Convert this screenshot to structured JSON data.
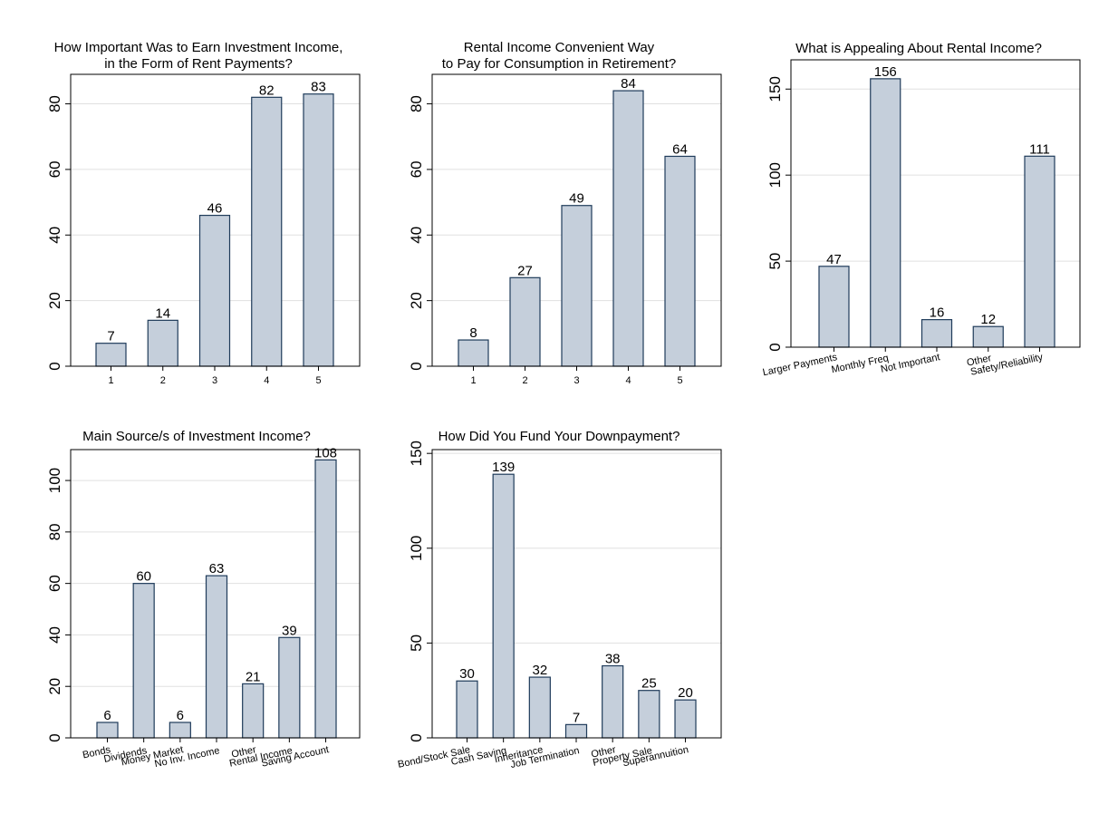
{
  "figure": {
    "background": "#ffffff"
  },
  "style": {
    "bar_fill": "#c5cfdb",
    "bar_stroke": "#1f3b5a",
    "grid_color": "#e0e0e0",
    "axis_color": "#000000"
  },
  "chart_data": [
    {
      "type": "bar",
      "title_lines": [
        "How Important Was to Earn Investment Income,",
        "in the Form of Rent Payments?"
      ],
      "categories": [
        "1",
        "2",
        "3",
        "4",
        "5"
      ],
      "values": [
        7,
        14,
        46,
        82,
        83
      ],
      "value_labels": [
        "7",
        "14",
        "46",
        "82",
        "83"
      ],
      "yticks": [
        0,
        20,
        40,
        60,
        80
      ],
      "ytick_labels": [
        "0",
        "20",
        "40",
        "60",
        "80"
      ],
      "ylim": [
        0,
        89
      ],
      "grid": true,
      "category_label_style": "horizontal"
    },
    {
      "type": "bar",
      "title_lines": [
        "Rental Income Convenient Way",
        "to Pay for Consumption in Retirement?"
      ],
      "categories": [
        "1",
        "2",
        "3",
        "4",
        "5"
      ],
      "values": [
        8,
        27,
        49,
        84,
        64
      ],
      "value_labels": [
        "8",
        "27",
        "49",
        "84",
        "64"
      ],
      "yticks": [
        0,
        20,
        40,
        60,
        80
      ],
      "ytick_labels": [
        "0",
        "20",
        "40",
        "60",
        "80"
      ],
      "ylim": [
        0,
        89
      ],
      "grid": true,
      "category_label_style": "horizontal"
    },
    {
      "type": "bar",
      "title_lines": [
        "What is Appealing About Rental Income?"
      ],
      "categories": [
        "Larger Payments",
        "Monthly Freq",
        "Not Important",
        "Other",
        "Safety/Reliability"
      ],
      "values": [
        47,
        156,
        16,
        12,
        111
      ],
      "value_labels": [
        "47",
        "156",
        "16",
        "12",
        "111"
      ],
      "yticks": [
        0,
        50,
        100,
        150
      ],
      "ytick_labels": [
        "0",
        "50",
        "100",
        "150"
      ],
      "ylim": [
        0,
        167
      ],
      "grid": true,
      "category_label_style": "angled"
    },
    {
      "type": "bar",
      "title_lines": [
        "Main Source/s of Investment Income?"
      ],
      "categories": [
        "Bonds",
        "Dividends",
        "Money Market",
        "No Inv. Income",
        "Other",
        "Rental Income",
        "Saving Account"
      ],
      "values": [
        6,
        60,
        6,
        63,
        21,
        39,
        108
      ],
      "value_labels": [
        "6",
        "60",
        "6",
        "63",
        "21",
        "39",
        "108"
      ],
      "yticks": [
        0,
        20,
        40,
        60,
        80,
        100
      ],
      "ytick_labels": [
        "0",
        "20",
        "40",
        "60",
        "80",
        "100"
      ],
      "ylim": [
        0,
        112
      ],
      "grid": true,
      "category_label_style": "angled"
    },
    {
      "type": "bar",
      "title_lines": [
        "How Did You Fund Your Downpayment?"
      ],
      "categories": [
        "Bond/Stock Sale",
        "Cash Saving",
        "Inheritance",
        "Job Termination",
        "Other",
        "Property Sale",
        "Superannuition"
      ],
      "values": [
        30,
        139,
        32,
        7,
        38,
        25,
        20
      ],
      "value_labels": [
        "30",
        "139",
        "32",
        "7",
        "38",
        "25",
        "20"
      ],
      "yticks": [
        0,
        50,
        100,
        150
      ],
      "ytick_labels": [
        "0",
        "50",
        "100",
        "150"
      ],
      "ylim": [
        0,
        152
      ],
      "grid": true,
      "category_label_style": "angled"
    }
  ]
}
